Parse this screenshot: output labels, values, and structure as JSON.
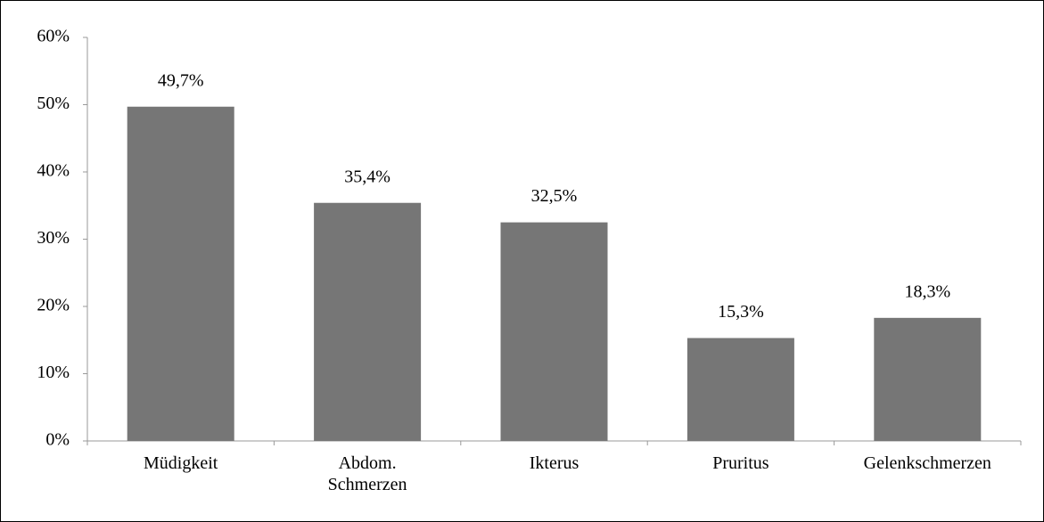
{
  "chart_data": {
    "type": "bar",
    "categories": [
      "Müdigkeit",
      "Abdom. Schmerzen",
      "Ikterus",
      "Pruritus",
      "Gelenkschmerzen"
    ],
    "values": [
      49.7,
      35.4,
      32.5,
      15.3,
      18.3
    ],
    "value_labels": [
      "49,7%",
      "35,4%",
      "32,5%",
      "15,3%",
      "18,3%"
    ],
    "color": "#767676",
    "ylim": [
      0,
      60
    ],
    "yticks": [
      {
        "value": 0,
        "label": "0%"
      },
      {
        "value": 10,
        "label": "10%"
      },
      {
        "value": 20,
        "label": "20%"
      },
      {
        "value": 30,
        "label": "30%"
      },
      {
        "value": 40,
        "label": "40%"
      },
      {
        "value": 50,
        "label": "50%"
      },
      {
        "value": 60,
        "label": "60%"
      }
    ],
    "grid": false
  }
}
